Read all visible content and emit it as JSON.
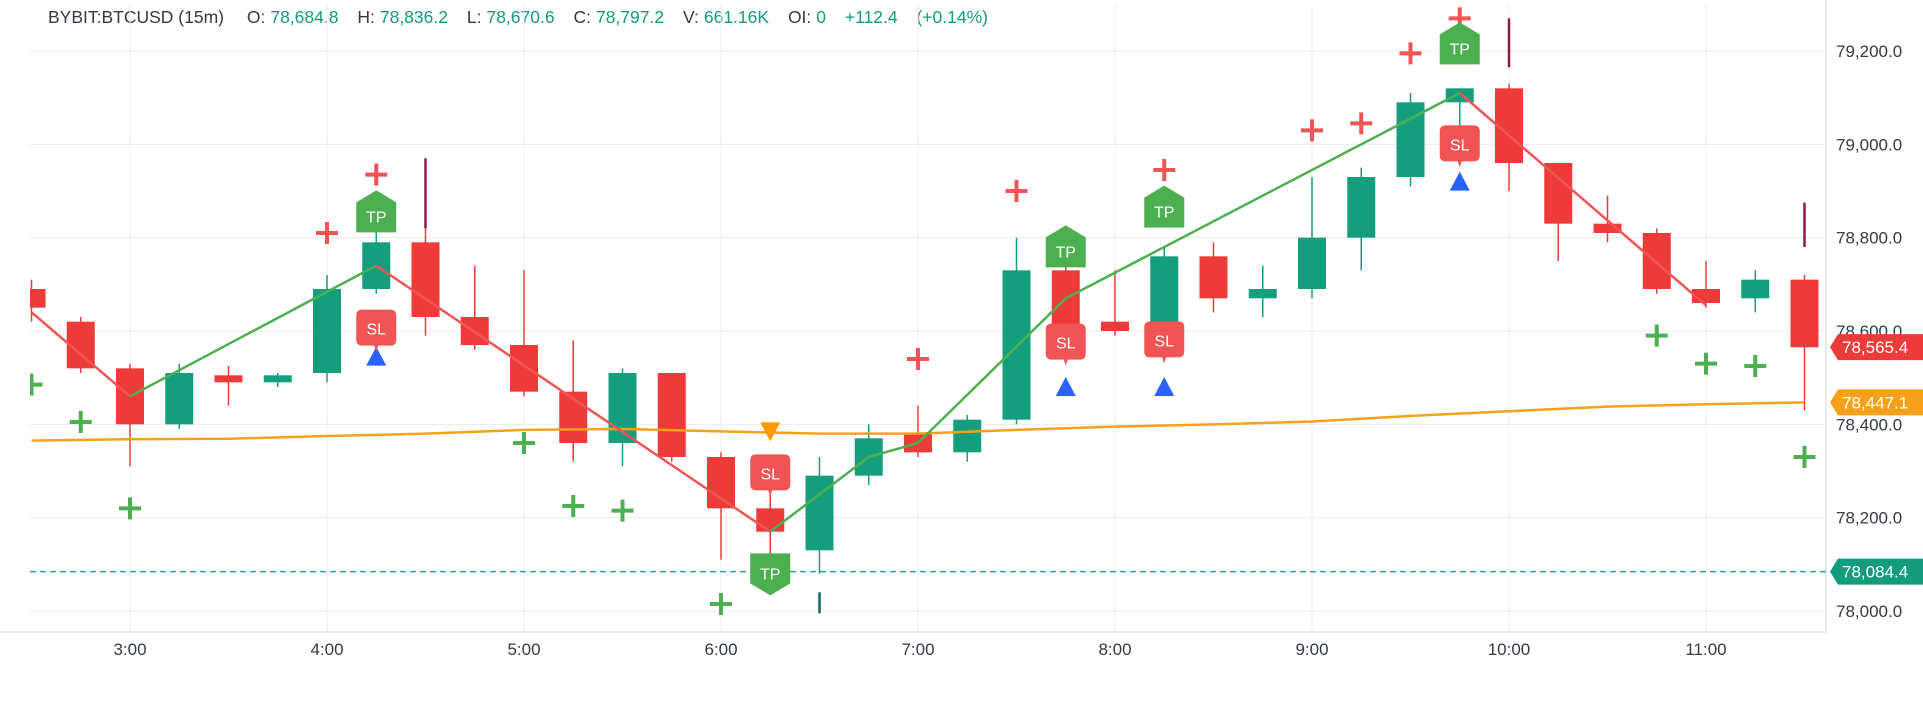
{
  "header": {
    "symbol": "BYBIT:BTCUSD (15m)",
    "ohlc": [
      {
        "label": "O:",
        "value": "78,684.8"
      },
      {
        "label": "H:",
        "value": "78,836.2"
      },
      {
        "label": "L:",
        "value": "78,670.6"
      },
      {
        "label": "C:",
        "value": "78,797.2"
      },
      {
        "label": "V:",
        "value": "661.16K"
      },
      {
        "label": "OI:",
        "value": "0"
      }
    ],
    "change": "+112.4",
    "change_pct": "(+0.14%)"
  },
  "colors": {
    "up": "#149e7e",
    "down": "#ec3b38",
    "ema": "#f7a11b",
    "swing_up": "#4caf50",
    "swing_down": "#f05454",
    "tp": "#4caf50",
    "sl": "#f05454",
    "entry_arrow": "#2962ff",
    "short_arrow": "#ff9800",
    "buy_cross": "#4caf50",
    "sell_cross": "#f05454",
    "dashed_line": "#26a69a",
    "grid": "#ececec",
    "spike": "#8b1a4a"
  },
  "chart_data": {
    "type": "candlestick",
    "timeframe": "15m",
    "x_ticks": [
      {
        "t": "2:30",
        "label": ""
      },
      {
        "t": "3:00",
        "label": "3:00"
      },
      {
        "t": "4:00",
        "label": "4:00"
      },
      {
        "t": "5:00",
        "label": "5:00"
      },
      {
        "t": "6:00",
        "label": "6:00"
      },
      {
        "t": "7:00",
        "label": "7:00"
      },
      {
        "t": "8:00",
        "label": "8:00"
      },
      {
        "t": "9:00",
        "label": "9:00"
      },
      {
        "t": "10:00",
        "label": "10:00"
      },
      {
        "t": "11:00",
        "label": "11:00"
      }
    ],
    "y_ticks": [
      {
        "value": 78000,
        "label": "78,000.0"
      },
      {
        "value": 78200,
        "label": "78,200.0"
      },
      {
        "value": 78400,
        "label": "78,400.0"
      },
      {
        "value": 78600,
        "label": "78,600.0"
      },
      {
        "value": 78800,
        "label": "78,800.0"
      },
      {
        "value": 79000,
        "label": "79,000.0"
      },
      {
        "value": 79200,
        "label": "79,200.0"
      }
    ],
    "ylim": [
      77985,
      79270
    ],
    "xlim": [
      "2:30",
      "11:47"
    ],
    "grid": true,
    "candles": [
      {
        "t": "2:30",
        "o": 78690,
        "h": 78710,
        "l": 78620,
        "c": 78650
      },
      {
        "t": "2:45",
        "o": 78620,
        "h": 78630,
        "l": 78510,
        "c": 78520
      },
      {
        "t": "3:00",
        "o": 78520,
        "h": 78530,
        "l": 78310,
        "c": 78400
      },
      {
        "t": "3:15",
        "o": 78400,
        "h": 78530,
        "l": 78390,
        "c": 78510
      },
      {
        "t": "3:30",
        "o": 78505,
        "h": 78525,
        "l": 78440,
        "c": 78490
      },
      {
        "t": "3:45",
        "o": 78490,
        "h": 78510,
        "l": 78480,
        "c": 78505
      },
      {
        "t": "4:00",
        "o": 78510,
        "h": 78720,
        "l": 78490,
        "c": 78690
      },
      {
        "t": "4:15",
        "o": 78690,
        "h": 78850,
        "l": 78680,
        "c": 78790
      },
      {
        "t": "4:30",
        "o": 78790,
        "h": 78820,
        "l": 78590,
        "c": 78630
      },
      {
        "t": "4:45",
        "o": 78630,
        "h": 78740,
        "l": 78560,
        "c": 78570
      },
      {
        "t": "5:00",
        "o": 78570,
        "h": 78730,
        "l": 78460,
        "c": 78470
      },
      {
        "t": "5:15",
        "o": 78470,
        "h": 78580,
        "l": 78320,
        "c": 78360
      },
      {
        "t": "5:30",
        "o": 78360,
        "h": 78520,
        "l": 78310,
        "c": 78510
      },
      {
        "t": "5:45",
        "o": 78510,
        "h": 78510,
        "l": 78320,
        "c": 78330
      },
      {
        "t": "6:00",
        "o": 78330,
        "h": 78340,
        "l": 78110,
        "c": 78220
      },
      {
        "t": "6:15",
        "o": 78220,
        "h": 78250,
        "l": 78110,
        "c": 78170
      },
      {
        "t": "6:30",
        "o": 78130,
        "h": 78330,
        "l": 78080,
        "c": 78290
      },
      {
        "t": "6:45",
        "o": 78290,
        "h": 78400,
        "l": 78270,
        "c": 78370
      },
      {
        "t": "7:00",
        "o": 78380,
        "h": 78440,
        "l": 78330,
        "c": 78340
      },
      {
        "t": "7:15",
        "o": 78340,
        "h": 78420,
        "l": 78320,
        "c": 78410
      },
      {
        "t": "7:30",
        "o": 78410,
        "h": 78800,
        "l": 78400,
        "c": 78730
      },
      {
        "t": "7:45",
        "o": 78730,
        "h": 78810,
        "l": 78580,
        "c": 78610
      },
      {
        "t": "8:00",
        "o": 78620,
        "h": 78730,
        "l": 78590,
        "c": 78600
      },
      {
        "t": "8:15",
        "o": 78600,
        "h": 78780,
        "l": 78560,
        "c": 78760
      },
      {
        "t": "8:30",
        "o": 78760,
        "h": 78790,
        "l": 78640,
        "c": 78670
      },
      {
        "t": "8:45",
        "o": 78670,
        "h": 78740,
        "l": 78630,
        "c": 78690
      },
      {
        "t": "9:00",
        "o": 78690,
        "h": 78930,
        "l": 78670,
        "c": 78800
      },
      {
        "t": "9:15",
        "o": 78800,
        "h": 78950,
        "l": 78730,
        "c": 78930
      },
      {
        "t": "9:30",
        "o": 78930,
        "h": 79110,
        "l": 78910,
        "c": 79090
      },
      {
        "t": "9:45",
        "o": 79090,
        "h": 79120,
        "l": 78990,
        "c": 79120
      },
      {
        "t": "10:00",
        "o": 79120,
        "h": 79130,
        "l": 78900,
        "c": 78960
      },
      {
        "t": "10:15",
        "o": 78960,
        "h": 78960,
        "l": 78750,
        "c": 78830
      },
      {
        "t": "10:30",
        "o": 78830,
        "h": 78890,
        "l": 78790,
        "c": 78810
      },
      {
        "t": "10:45",
        "o": 78810,
        "h": 78820,
        "l": 78680,
        "c": 78690
      },
      {
        "t": "11:00",
        "o": 78690,
        "h": 78750,
        "l": 78650,
        "c": 78660
      },
      {
        "t": "11:15",
        "o": 78670,
        "h": 78730,
        "l": 78640,
        "c": 78710
      },
      {
        "t": "11:30",
        "o": 78710,
        "h": 78720,
        "l": 78430,
        "c": 78565
      }
    ],
    "ema": [
      {
        "t": "2:30",
        "v": 78365
      },
      {
        "t": "3:00",
        "v": 78368
      },
      {
        "t": "3:30",
        "v": 78369
      },
      {
        "t": "4:00",
        "v": 78375
      },
      {
        "t": "4:30",
        "v": 78380
      },
      {
        "t": "5:00",
        "v": 78388
      },
      {
        "t": "5:30",
        "v": 78390
      },
      {
        "t": "6:00",
        "v": 78385
      },
      {
        "t": "6:30",
        "v": 78380
      },
      {
        "t": "7:00",
        "v": 78380
      },
      {
        "t": "7:30",
        "v": 78388
      },
      {
        "t": "8:00",
        "v": 78395
      },
      {
        "t": "8:30",
        "v": 78400
      },
      {
        "t": "9:00",
        "v": 78406
      },
      {
        "t": "9:30",
        "v": 78418
      },
      {
        "t": "10:00",
        "v": 78428
      },
      {
        "t": "10:30",
        "v": 78438
      },
      {
        "t": "11:00",
        "v": 78443
      },
      {
        "t": "11:30",
        "v": 78447
      }
    ],
    "zigzag": [
      {
        "t": "2:30",
        "v": 78640
      },
      {
        "t": "3:00",
        "v": 78460
      },
      {
        "t": "4:15",
        "v": 78740
      },
      {
        "t": "6:15",
        "v": 78170
      },
      {
        "t": "6:45",
        "v": 78330
      },
      {
        "t": "7:00",
        "v": 78360
      },
      {
        "t": "7:45",
        "v": 78670
      },
      {
        "t": "9:45",
        "v": 79110
      },
      {
        "t": "11:00",
        "v": 78655
      }
    ],
    "tp_markers": [
      {
        "t": "4:15",
        "v": 78850,
        "label": "TP",
        "dir": "up"
      },
      {
        "t": "6:15",
        "v": 78085,
        "label": "TP",
        "dir": "down"
      },
      {
        "t": "7:45",
        "v": 78775,
        "label": "TP",
        "dir": "up"
      },
      {
        "t": "8:15",
        "v": 78860,
        "label": "TP",
        "dir": "up"
      },
      {
        "t": "9:45",
        "v": 79210,
        "label": "TP",
        "dir": "up"
      }
    ],
    "sl_markers": [
      {
        "t": "4:15",
        "v": 78605,
        "label": "SL"
      },
      {
        "t": "6:15",
        "v": 78295,
        "label": "SL"
      },
      {
        "t": "7:45",
        "v": 78575,
        "label": "SL"
      },
      {
        "t": "8:15",
        "v": 78580,
        "label": "SL"
      },
      {
        "t": "9:45",
        "v": 79000,
        "label": "SL"
      }
    ],
    "long_arrows": [
      {
        "t": "4:15",
        "v": 78545
      },
      {
        "t": "7:45",
        "v": 78480
      },
      {
        "t": "8:15",
        "v": 78480
      },
      {
        "t": "9:45",
        "v": 78920
      }
    ],
    "short_arrows": [
      {
        "t": "6:15",
        "v": 78385
      }
    ],
    "sell_crosses": [
      {
        "t": "4:00",
        "v": 78810
      },
      {
        "t": "4:15",
        "v": 78935
      },
      {
        "t": "7:00",
        "v": 78540
      },
      {
        "t": "7:30",
        "v": 78900
      },
      {
        "t": "8:15",
        "v": 78945
      },
      {
        "t": "9:00",
        "v": 79030
      },
      {
        "t": "9:15",
        "v": 79045
      },
      {
        "t": "9:30",
        "v": 79195
      },
      {
        "t": "9:45",
        "v": 79270
      }
    ],
    "buy_crosses": [
      {
        "t": "2:30",
        "v": 78485
      },
      {
        "t": "2:45",
        "v": 78405
      },
      {
        "t": "3:00",
        "v": 78220
      },
      {
        "t": "5:00",
        "v": 78360
      },
      {
        "t": "5:15",
        "v": 78225
      },
      {
        "t": "5:30",
        "v": 78215
      },
      {
        "t": "6:00",
        "v": 78015
      },
      {
        "t": "10:45",
        "v": 78590
      },
      {
        "t": "11:00",
        "v": 78530
      },
      {
        "t": "11:15",
        "v": 78525
      },
      {
        "t": "11:30",
        "v": 78330
      }
    ],
    "spikes": [
      {
        "t": "4:30",
        "lo": 78820,
        "hi": 78970
      },
      {
        "t": "10:00",
        "lo": 79165,
        "hi": 79270
      },
      {
        "t": "11:30",
        "lo": 78780,
        "hi": 78875
      },
      {
        "t": "6:30",
        "lo": 77995,
        "hi": 78040
      }
    ],
    "price_labels": [
      {
        "kind": "last",
        "value": 78565.4,
        "label": "78,565.4"
      },
      {
        "kind": "ema",
        "value": 78447.1,
        "label": "78,447.1"
      },
      {
        "kind": "level",
        "value": 78084.4,
        "label": "78,084.4"
      }
    ],
    "dashed_level": 78084.4
  }
}
